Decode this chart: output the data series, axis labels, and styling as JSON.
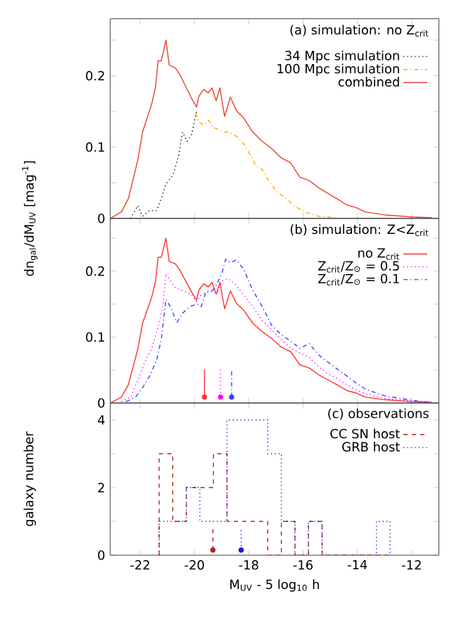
{
  "chart_data": [
    {
      "type": "line",
      "title": "(a) simulation: no Z$_{crit}$",
      "ylabel": "dn$_{gal}$/dM$_{UV}$ [mag$^{-1}$]",
      "xlim": [
        -23.1,
        -11
      ],
      "xticks": [
        -22,
        -20,
        -18,
        -16,
        -14,
        -12
      ],
      "ylim": [
        0,
        0.28
      ],
      "yticks": [
        0,
        {
          "value": 0.05,
          "label": null
        },
        0.1,
        {
          "value": 0.15,
          "label": null
        },
        0.2,
        {
          "value": 0.25,
          "label": null
        }
      ],
      "tick_labels": "y",
      "legend": "top right",
      "marker": "none",
      "series": [
        {
          "name": "34 Mpc simulation",
          "color": "#000000",
          "line_style": "dotted",
          "x": [
            -22.35,
            -22.09,
            -21.91,
            -21.65,
            -21.39,
            -21.22,
            -21.05,
            -20.79,
            -20.58,
            -20.44,
            -20.27,
            -20.1,
            -19.92
          ],
          "values": [
            0,
            0.018,
            0.003,
            0.011,
            0.011,
            0.028,
            0.048,
            0.061,
            0.088,
            0.121,
            0.108,
            0.118,
            0.151
          ]
        },
        {
          "name": "100 Mpc simulation",
          "color": "#ffa500",
          "line_style": "dashdot",
          "x": [
            -19.96,
            -19.84,
            -19.66,
            -19.49,
            -19.32,
            -19.15,
            -18.89,
            -18.71,
            -18.45,
            -18.19,
            -17.93,
            -17.76,
            -17.5,
            -17.24,
            -16.98,
            -16.64,
            -16.29,
            -15.94,
            -15.43,
            -14.73
          ],
          "values": [
            0.148,
            0.135,
            0.131,
            0.138,
            0.128,
            0.125,
            0.121,
            0.121,
            0.115,
            0.105,
            0.088,
            0.075,
            0.068,
            0.051,
            0.038,
            0.028,
            0.017,
            0.009,
            0.003,
            0.001
          ]
        },
        {
          "name": "combined",
          "color": "#e8412c",
          "line_style": "solid",
          "x": [
            -23.1,
            -22.69,
            -22.43,
            -22.09,
            -21.91,
            -21.74,
            -21.57,
            -21.43,
            -21.34,
            -21.22,
            -21.05,
            -20.93,
            -20.7,
            -20.53,
            -20.36,
            -20.1,
            -19.92,
            -19.84,
            -19.66,
            -19.49,
            -19.35,
            -19.2,
            -19.06,
            -18.89,
            -18.68,
            -18.45,
            -18.19,
            -17.85,
            -17.5,
            -17.16,
            -16.81,
            -16.46,
            -16.12,
            -15.77,
            -15.43,
            -15.08,
            -14.73,
            -14.39,
            -14.04,
            -13.7,
            -13.0,
            -11.97,
            -11.27
          ],
          "values": [
            0,
            0.009,
            0.028,
            0.081,
            0.121,
            0.141,
            0.161,
            0.185,
            0.221,
            0.221,
            0.25,
            0.215,
            0.211,
            0.201,
            0.188,
            0.168,
            0.156,
            0.171,
            0.181,
            0.176,
            0.183,
            0.165,
            0.183,
            0.143,
            0.17,
            0.151,
            0.141,
            0.121,
            0.108,
            0.098,
            0.085,
            0.078,
            0.058,
            0.053,
            0.043,
            0.035,
            0.027,
            0.019,
            0.015,
            0.009,
            0.005,
            0.002,
            0.001
          ]
        }
      ]
    },
    {
      "type": "line",
      "title": "(b) simulation: Z<Z$_{crit}$",
      "xlim": [
        -23.1,
        -11
      ],
      "xticks": [
        -22,
        -20,
        -18,
        -16,
        -14,
        -12
      ],
      "ylim": [
        0,
        0.28
      ],
      "yticks": [
        0,
        {
          "value": 0.05,
          "label": null
        },
        0.1,
        {
          "value": 0.15,
          "label": null
        },
        0.2,
        {
          "value": 0.25,
          "label": null
        }
      ],
      "tick_labels": "y",
      "legend": "top right",
      "marker": "none",
      "series": [
        {
          "name": "no Z$_{crit}$",
          "color": "#ff3030",
          "line_style": "solid",
          "x": [
            -23.1,
            -22.69,
            -22.43,
            -22.09,
            -21.91,
            -21.74,
            -21.57,
            -21.43,
            -21.34,
            -21.22,
            -21.05,
            -20.93,
            -20.7,
            -20.53,
            -20.36,
            -20.1,
            -19.92,
            -19.84,
            -19.66,
            -19.49,
            -19.35,
            -19.2,
            -19.06,
            -18.89,
            -18.68,
            -18.45,
            -18.19,
            -17.85,
            -17.5,
            -17.16,
            -16.81,
            -16.46,
            -16.12,
            -15.77,
            -15.43,
            -15.08,
            -14.73,
            -14.39,
            -14.04,
            -13.7,
            -13.0,
            -11.97,
            -11.27
          ],
          "values": [
            0,
            0.009,
            0.028,
            0.081,
            0.121,
            0.141,
            0.161,
            0.185,
            0.221,
            0.221,
            0.25,
            0.215,
            0.211,
            0.201,
            0.188,
            0.168,
            0.156,
            0.171,
            0.181,
            0.176,
            0.183,
            0.165,
            0.183,
            0.143,
            0.17,
            0.151,
            0.141,
            0.121,
            0.108,
            0.098,
            0.085,
            0.078,
            0.058,
            0.053,
            0.043,
            0.035,
            0.027,
            0.019,
            0.015,
            0.009,
            0.005,
            0.002,
            0.001
          ]
        },
        {
          "name": "Z$_{crit}$/Z$_{⊙}$ = 0.5",
          "color": "#ff00ff",
          "line_style": "dotted",
          "x": [
            -22.69,
            -22.35,
            -22.09,
            -21.83,
            -21.57,
            -21.34,
            -21.17,
            -21.05,
            -20.88,
            -20.7,
            -20.44,
            -20.1,
            -19.92,
            -19.75,
            -19.58,
            -19.32,
            -19.15,
            -18.97,
            -18.8,
            -18.54,
            -18.19,
            -17.85,
            -17.5,
            -17.16,
            -16.81,
            -16.46,
            -16.12,
            -15.77,
            -15.43,
            -15.08,
            -14.73,
            -14.39,
            -14.04,
            -13.7,
            -13.0,
            -11.97,
            -11.27
          ],
          "values": [
            0.002,
            0.009,
            0.034,
            0.062,
            0.083,
            0.115,
            0.146,
            0.196,
            0.185,
            0.175,
            0.171,
            0.164,
            0.154,
            0.164,
            0.168,
            0.169,
            0.168,
            0.185,
            0.189,
            0.182,
            0.164,
            0.146,
            0.125,
            0.111,
            0.097,
            0.083,
            0.076,
            0.069,
            0.055,
            0.044,
            0.037,
            0.027,
            0.02,
            0.014,
            0.007,
            0.003,
            0.001
          ]
        },
        {
          "name": "Z$_{crit}$/Z$_{⊙}$ = 0.1",
          "color": "#3c3cff",
          "line_style": "dashdot",
          "x": [
            -22.52,
            -22.17,
            -21.91,
            -21.65,
            -21.39,
            -21.22,
            -21.05,
            -20.88,
            -20.65,
            -20.44,
            -20.18,
            -19.92,
            -19.75,
            -19.58,
            -19.32,
            -19.15,
            -18.97,
            -18.85,
            -18.68,
            -18.45,
            -18.19,
            -17.85,
            -17.5,
            -17.16,
            -16.81,
            -16.46,
            -16.12,
            -15.77,
            -15.43,
            -15.08,
            -14.73,
            -14.39,
            -14.04,
            -13.7,
            -13.0,
            -11.97,
            -11.27
          ],
          "values": [
            0.002,
            0.009,
            0.023,
            0.041,
            0.065,
            0.097,
            0.157,
            0.146,
            0.122,
            0.136,
            0.146,
            0.15,
            0.146,
            0.168,
            0.171,
            0.182,
            0.199,
            0.218,
            0.213,
            0.217,
            0.203,
            0.171,
            0.146,
            0.118,
            0.104,
            0.094,
            0.083,
            0.09,
            0.073,
            0.062,
            0.051,
            0.041,
            0.03,
            0.021,
            0.011,
            0.004,
            0.001
          ]
        },
        {
          "type": "scatter",
          "marker": "triangle",
          "color": "#ff3030",
          "line_style": "solid",
          "x": [
            -19.63
          ],
          "values": [
            0.009
          ],
          "errors": [
            [
              0.009,
              0.051
            ]
          ]
        },
        {
          "type": "scatter",
          "marker": "triangle",
          "color": "#ff00ff",
          "line_style": "dotted",
          "x": [
            -19.04
          ],
          "values": [
            0.009
          ],
          "errors": [
            [
              0.009,
              0.051
            ]
          ]
        },
        {
          "type": "scatter",
          "marker": "triangle",
          "color": "#3c3cff",
          "line_style": "dashdot",
          "x": [
            -18.63
          ],
          "values": [
            0.009
          ],
          "errors": [
            [
              0.009,
              0.051
            ]
          ]
        }
      ]
    },
    {
      "type": "histogram",
      "title": "(c) observations",
      "xlabel": "M$_{UV}$ - 5 log$_{10}$ h",
      "ylabel": "galaxy number",
      "xlim": [
        -23.1,
        -11
      ],
      "xticks": [
        -22,
        -20,
        -18,
        -16,
        -14,
        -12
      ],
      "ylim": [
        0,
        4.5
      ],
      "yticks": [
        0,
        {
          "value": 1,
          "label": null
        },
        2,
        {
          "value": 3,
          "label": null
        },
        4
      ],
      "legend": "top right",
      "bins": [
        -21.3,
        -20.8,
        -20.3,
        -19.8,
        -19.3,
        -18.8,
        -18.3,
        -17.8,
        -17.3,
        -16.8,
        -16.3,
        -15.8,
        -15.3,
        -14.8,
        -14.3,
        -13.8,
        -13.3,
        -12.8
      ],
      "series": [
        {
          "name": "CC SN host",
          "color": "#b22222",
          "line_style": "dashed",
          "values": [
            3,
            1,
            2,
            2,
            3,
            1,
            1,
            1,
            0,
            1,
            0,
            1,
            0,
            0,
            0,
            0,
            0
          ]
        },
        {
          "name": "GRB host",
          "color": "#1a1acc",
          "line_style": "dotted",
          "values": [
            1,
            1,
            2,
            1,
            1,
            4,
            4,
            4,
            3,
            1,
            0,
            1,
            0,
            0,
            0,
            0,
            1
          ]
        },
        {
          "type": "scatter",
          "marker": "triangle",
          "color": "#b22222",
          "line_style": "dashed",
          "x": [
            -19.32
          ],
          "values": [
            0.15
          ],
          "errors": [
            [
              0.15,
              0.8
            ]
          ]
        },
        {
          "type": "scatter",
          "marker": "triangle",
          "color": "#1a1acc",
          "line_style": "dotted",
          "x": [
            -18.28
          ],
          "values": [
            0.15
          ],
          "errors": [
            [
              0.15,
              0.8
            ]
          ]
        }
      ]
    }
  ]
}
